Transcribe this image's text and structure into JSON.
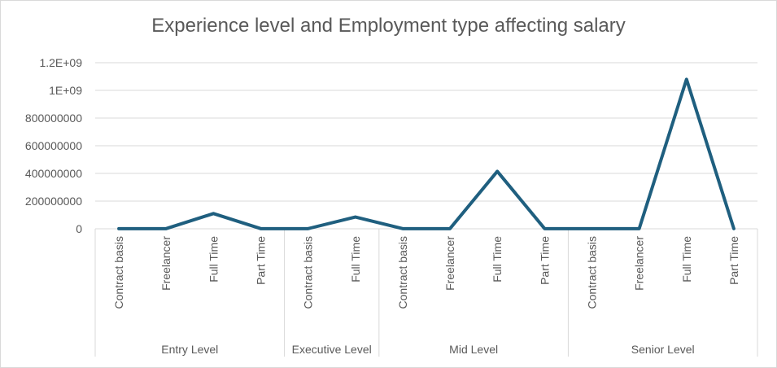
{
  "chart_data": {
    "type": "line",
    "title": "Experience level and Employment type affecting salary",
    "ylim": [
      0,
      1200000000
    ],
    "y_ticks": [
      0,
      200000000,
      400000000,
      600000000,
      800000000,
      1000000000,
      1200000000
    ],
    "y_tick_labels": [
      "0",
      "200000000",
      "400000000",
      "600000000",
      "800000000",
      "1E+09",
      "1.2E+09"
    ],
    "grid": true,
    "color": "#1f5f7f",
    "groups": [
      {
        "name": "Entry Level",
        "categories": [
          "Contract basis",
          "Freelancer",
          "Full Time",
          "Part Time"
        ]
      },
      {
        "name": "Executive Level",
        "categories": [
          "Contract basis",
          "Full Time"
        ]
      },
      {
        "name": "Mid Level",
        "categories": [
          "Contract basis",
          "Freelancer",
          "Full Time",
          "Part Time"
        ]
      },
      {
        "name": "Senior Level",
        "categories": [
          "Contract basis",
          "Freelancer",
          "Full Time",
          "Part Time"
        ]
      }
    ],
    "values": [
      1000000,
      1000000,
      110000000,
      1000000,
      1000000,
      85000000,
      1000000,
      1000000,
      415000000,
      1000000,
      1000000,
      1000000,
      1080000000,
      1000000
    ]
  }
}
